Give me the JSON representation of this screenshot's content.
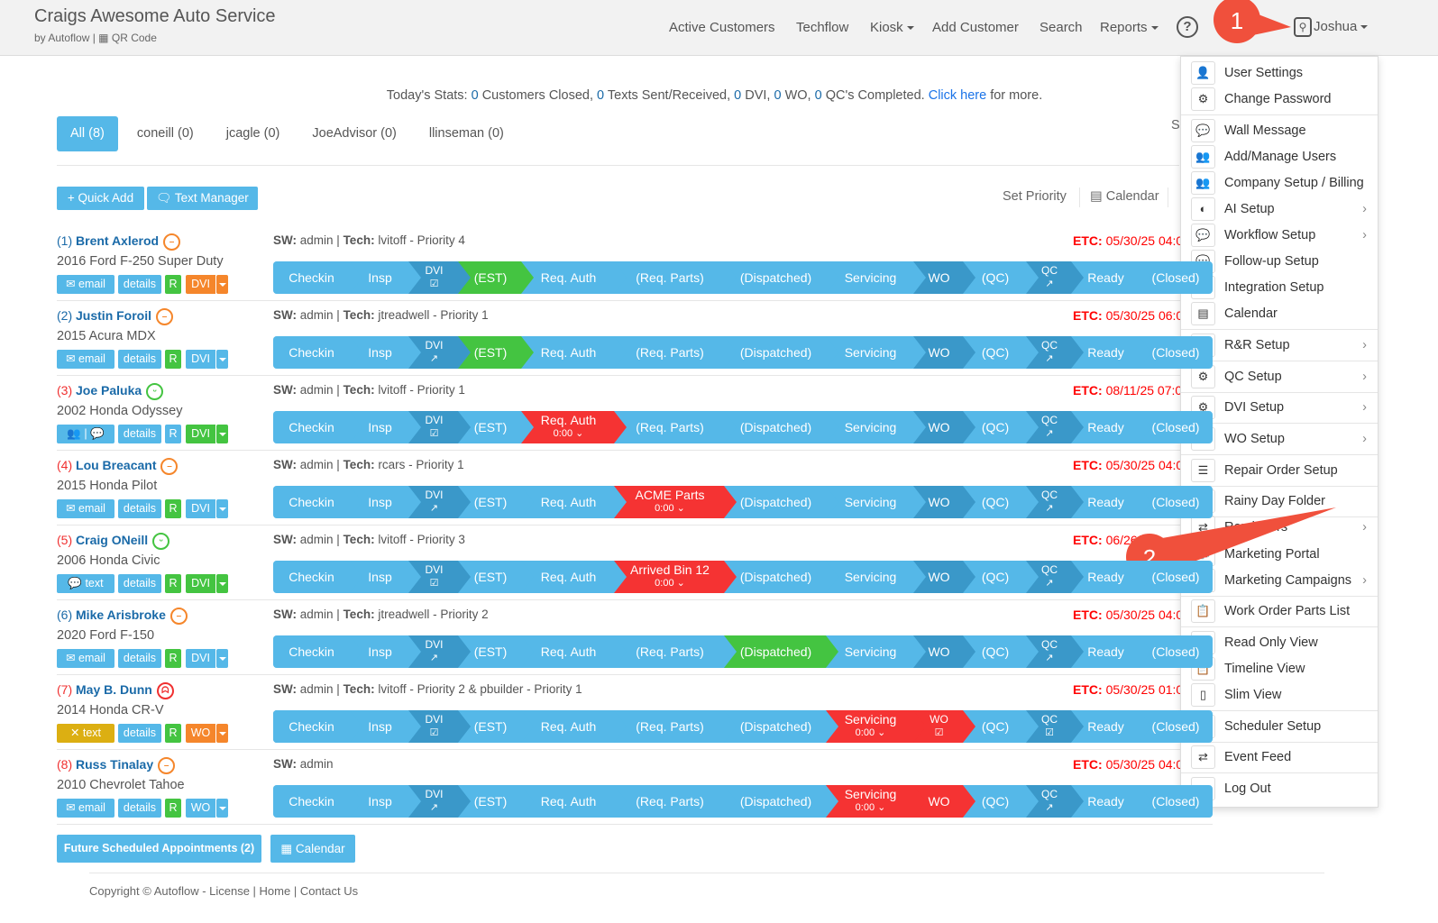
{
  "header": {
    "title": "Craigs Awesome Auto Service",
    "subtitle": "by Autoflow",
    "qr_label": "QR Code",
    "nav": [
      "Active Customers",
      "Techflow",
      "Kiosk",
      "Add Customer",
      "Search",
      "Reports"
    ],
    "help": "?",
    "user": "Joshua"
  },
  "stats": {
    "prefix": "Today's Stats:",
    "closed": "0",
    "closed_label": "Customers Closed,",
    "texts": "0",
    "texts_label": "Texts Sent/Received,",
    "dvi": "0",
    "dvi_label": "DVI,",
    "wo": "0",
    "wo_label": "WO,",
    "qc": "0",
    "qc_label": "QC's Completed.",
    "link": "Click here",
    "suffix": "for more."
  },
  "tabs": [
    "All (8)",
    "coneill (0)",
    "jcagle (0)",
    "JoeAdvisor (0)",
    "llinseman (0)"
  ],
  "toolbar": {
    "quick_add": "+ Quick Add",
    "text_manager": "Text Manager",
    "set_priority": "Set Priority",
    "calendar": "Calendar",
    "hidden_s": "S"
  },
  "stage_labels": [
    "Checkin",
    "Insp",
    "DVI",
    "(EST)",
    "Req. Auth",
    "(Req. Parts)",
    "(Dispatched)",
    "Servicing",
    "WO",
    "(QC)",
    "QC",
    "Ready",
    "(Closed)"
  ],
  "colors": {
    "light": "#55b8e8",
    "dark": "#3a98c9",
    "green": "#44c441",
    "red": "#f53333",
    "orange": "#f5862b",
    "yellow": "#dcaf12",
    "blue_name": "#1a6aa8"
  },
  "rows": [
    {
      "num": "(1)",
      "num_color": "blue",
      "name": "Brent Axlerod",
      "mood": "neutral",
      "vehicle": "2016 Ford F-250 Super Duty",
      "contact": "email",
      "r": "green",
      "dvi_label": "DVI",
      "dvi_color": "orange",
      "info_sw": "admin",
      "info_tech": "lvitoff - Priority 4",
      "etc": "05/30/25 04:0",
      "states": [
        "l",
        "l",
        "d",
        "g",
        "l",
        "l",
        "l",
        "l",
        "d",
        "l",
        "d",
        "l",
        "l"
      ],
      "subs": {
        "2": "☑",
        "10": "↗"
      },
      "labels": {}
    },
    {
      "num": "(2)",
      "num_color": "blue",
      "name": "Justin Foroil",
      "mood": "neutral",
      "vehicle": "2015 Acura MDX",
      "contact": "email",
      "r": "green",
      "dvi_label": "DVI",
      "dvi_color": "light",
      "info_sw": "admin",
      "info_tech": "jtreadwell - Priority 1",
      "etc": "05/30/25 06:0",
      "states": [
        "l",
        "l",
        "d",
        "g",
        "l",
        "l",
        "l",
        "l",
        "d",
        "l",
        "d",
        "l",
        "l"
      ],
      "subs": {
        "2": "↗",
        "10": "↗"
      },
      "labels": {}
    },
    {
      "num": "(3)",
      "num_color": "red",
      "name": "Joe Paluka",
      "mood": "happy",
      "vehicle": "2002 Honda Odyssey",
      "contact": "👥 | 💬",
      "r": "light",
      "dvi_label": "DVI",
      "dvi_color": "green",
      "info_sw": "admin",
      "info_tech": "lvitoff - Priority 1",
      "etc": "08/11/25 07:0",
      "states": [
        "l",
        "l",
        "d",
        "l",
        "r",
        "l",
        "l",
        "l",
        "d",
        "l",
        "d",
        "l",
        "l"
      ],
      "subs": {
        "2": "☑",
        "4": "0:00 ⌄",
        "10": "↗"
      },
      "labels": {}
    },
    {
      "num": "(4)",
      "num_color": "red",
      "name": "Lou Breacant",
      "mood": "neutral",
      "vehicle": "2015 Honda Pilot",
      "contact": "email",
      "r": "green",
      "dvi_label": "DVI",
      "dvi_color": "light",
      "info_sw": "admin",
      "info_tech": "rcars - Priority 1",
      "etc": "05/30/25 04:0",
      "states": [
        "l",
        "l",
        "d",
        "l",
        "l",
        "r",
        "l",
        "l",
        "d",
        "l",
        "d",
        "l",
        "l"
      ],
      "subs": {
        "2": "↗",
        "5": "0:00 ⌄",
        "10": "↗"
      },
      "labels": {
        "5": "ACME Parts"
      }
    },
    {
      "num": "(5)",
      "num_color": "red",
      "name": "Craig ONeill",
      "mood": "happy",
      "vehicle": "2006 Honda Civic",
      "contact": "text",
      "r": "green",
      "dvi_label": "DVI",
      "dvi_color": "green",
      "info_sw": "admin",
      "info_tech": "lvitoff - Priority 3",
      "etc": "06/26/",
      "states": [
        "l",
        "l",
        "d",
        "l",
        "l",
        "r",
        "l",
        "l",
        "d",
        "l",
        "d",
        "l",
        "l"
      ],
      "subs": {
        "2": "☑",
        "5": "0:00 ⌄",
        "10": "↗"
      },
      "labels": {
        "5": "Arrived Bin 12"
      }
    },
    {
      "num": "(6)",
      "num_color": "blue",
      "name": "Mike Arisbroke",
      "mood": "neutral",
      "vehicle": "2020 Ford F-150",
      "contact": "email",
      "r": "green",
      "dvi_label": "DVI",
      "dvi_color": "light",
      "info_sw": "admin",
      "info_tech": "jtreadwell - Priority 2",
      "etc": "05/30/25 04:0",
      "states": [
        "l",
        "l",
        "d",
        "l",
        "l",
        "l",
        "g",
        "l",
        "d",
        "l",
        "d",
        "l",
        "l"
      ],
      "subs": {
        "2": "↗",
        "10": "↗"
      },
      "labels": {}
    },
    {
      "num": "(7)",
      "num_color": "red",
      "name": "May B. Dunn",
      "mood": "angry",
      "vehicle": "2014 Honda CR-V",
      "contact": "✕ text",
      "contact_color": "yellow",
      "r": "green",
      "dvi_label": "WO",
      "dvi_color": "orange",
      "info_sw": "admin",
      "info_tech": "lvitoff - Priority 2 & pbuilder - Priority 1",
      "etc": "05/30/25 01:0",
      "prefix": "D",
      "states": [
        "l",
        "l",
        "d",
        "l",
        "l",
        "l",
        "l",
        "r",
        "r",
        "l",
        "d",
        "l",
        "l"
      ],
      "subs": {
        "2": "☑",
        "7": "0:00 ⌄",
        "8": "☑",
        "10": "☑"
      },
      "labels": {}
    },
    {
      "num": "(8)",
      "num_color": "red",
      "name": "Russ Tinalay",
      "mood": "neutral",
      "vehicle": "2010 Chevrolet Tahoe",
      "contact": "email",
      "r": "green",
      "dvi_label": "WO",
      "dvi_color": "light",
      "info_sw": "admin",
      "info_tech": "",
      "etc": "05/30/25 04:0",
      "states": [
        "l",
        "l",
        "d",
        "l",
        "l",
        "l",
        "l",
        "r",
        "r",
        "l",
        "d",
        "l",
        "l"
      ],
      "subs": {
        "2": "↗",
        "7": "0:00 ⌄",
        "10": "↗"
      },
      "labels": {}
    }
  ],
  "row_text": {
    "sw": "SW:",
    "tech": "Tech:",
    "etc": "ETC:",
    "details": "details",
    "r": "R"
  },
  "bottom": {
    "future": "Future Scheduled Appointments (2)",
    "calendar": "Calendar"
  },
  "footer": "Copyright © Autoflow - License | Home | Contact Us",
  "menu": [
    {
      "label": "User Settings",
      "icon": "👤"
    },
    {
      "label": "Change Password",
      "icon": "⚙",
      "div": true
    },
    {
      "label": "Wall Message",
      "icon": "💬"
    },
    {
      "label": "Add/Manage Users",
      "icon": "👥"
    },
    {
      "label": "Company Setup / Billing",
      "icon": "👥"
    },
    {
      "label": "AI Setup",
      "icon": "◐",
      "sub": true
    },
    {
      "label": "Workflow Setup",
      "icon": "💬",
      "sub": true
    },
    {
      "label": "Follow-up Setup",
      "icon": "💬"
    },
    {
      "label": "Integration Setup",
      "icon": "⟳"
    },
    {
      "label": "Calendar",
      "icon": "▤",
      "div": true
    },
    {
      "label": "R&R Setup",
      "icon": "📋",
      "sub": true,
      "div": true
    },
    {
      "label": "QC Setup",
      "icon": "⚙",
      "sub": true,
      "div": true
    },
    {
      "label": "DVI Setup",
      "icon": "⚙",
      "sub": true,
      "div": true
    },
    {
      "label": "WO Setup",
      "icon": "⚙",
      "sub": true,
      "div": true
    },
    {
      "label": "Repair Order Setup",
      "icon": "☰",
      "div": true
    },
    {
      "label": "Rainy Day Folder",
      "icon": "🗀",
      "div": true
    },
    {
      "label": "Reminders",
      "icon": "⇄",
      "sub": true
    },
    {
      "label": "Marketing Portal",
      "icon": "📣"
    },
    {
      "label": "Marketing Campaigns",
      "icon": "📣",
      "sub": true,
      "div": true
    },
    {
      "label": "Work Order Parts List",
      "icon": "📋",
      "div": true
    },
    {
      "label": "Read Only View",
      "icon": "📋"
    },
    {
      "label": "Timeline View",
      "icon": "📋"
    },
    {
      "label": "Slim View",
      "icon": "▯",
      "div": true
    },
    {
      "label": "Scheduler Setup",
      "icon": "🔧",
      "div": true
    },
    {
      "label": "Event Feed",
      "icon": "⇄",
      "div": true
    },
    {
      "label": "Log Out",
      "icon": "⇥"
    }
  ],
  "annotations": [
    "1",
    "2"
  ]
}
